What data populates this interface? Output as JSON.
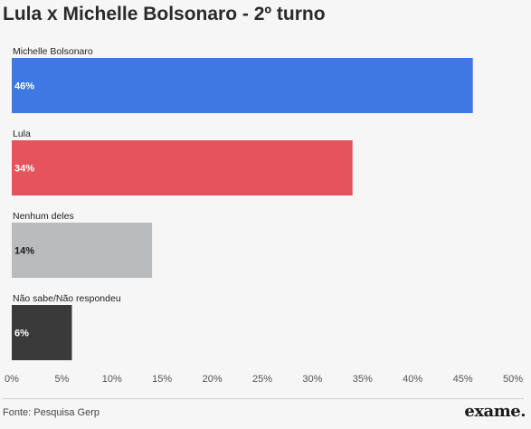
{
  "header": {
    "title": "Lula x Michelle Bolsonaro - 2º turno"
  },
  "chart_data": {
    "type": "bar",
    "orientation": "horizontal",
    "categories": [
      "Michelle Bolsonaro",
      "Lula",
      "Nenhum deles",
      "Não sabe/Não respondeu"
    ],
    "values": [
      46,
      34,
      14,
      6
    ],
    "value_labels": [
      "46%",
      "34%",
      "14%",
      "6%"
    ],
    "colors": [
      "#3d78e3",
      "#e5545c",
      "#b9bbbd",
      "#3a3a3a"
    ],
    "label_colors": [
      "#ffffff",
      "#ffffff",
      "#1a1a1a",
      "#ffffff"
    ],
    "xlim": [
      0,
      50
    ],
    "ticks": [
      0,
      5,
      10,
      15,
      20,
      25,
      30,
      35,
      40,
      45,
      50
    ],
    "tick_labels": [
      "0%",
      "5%",
      "10%",
      "15%",
      "20%",
      "25%",
      "30%",
      "35%",
      "40%",
      "45%",
      "50%"
    ],
    "grid": false,
    "legend": "none",
    "title": "Lula x Michelle Bolsonaro - 2º turno"
  },
  "footer": {
    "source": "Fonte: Pesquisa Gerp",
    "brand": "exame."
  }
}
